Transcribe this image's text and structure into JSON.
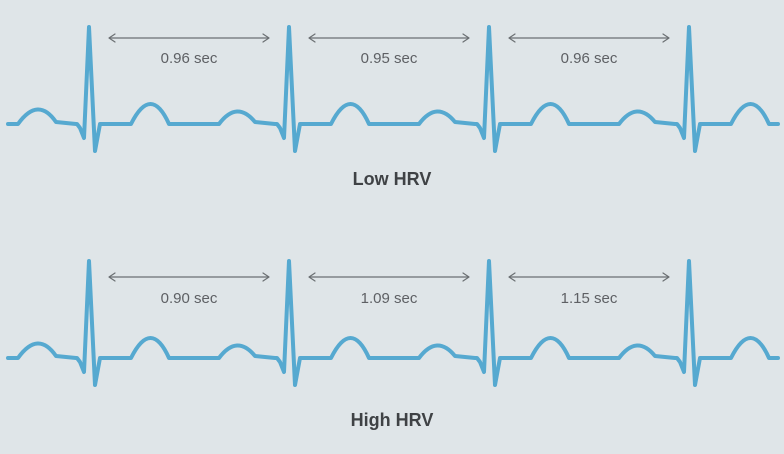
{
  "colors": {
    "background": "#dfe5e8",
    "trace": "#56a9d0",
    "arrow": "#6b6f73",
    "label_text": "#5e6064",
    "title_text": "#3f4245"
  },
  "panels": [
    {
      "title": "Low HRV",
      "intervals": [
        {
          "label": "0.96 sec",
          "seconds": 0.96
        },
        {
          "label": "0.95 sec",
          "seconds": 0.95
        },
        {
          "label": "0.96 sec",
          "seconds": 0.96
        }
      ]
    },
    {
      "title": "High HRV",
      "intervals": [
        {
          "label": "0.90 sec",
          "seconds": 0.9
        },
        {
          "label": "1.09 sec",
          "seconds": 1.09
        },
        {
          "label": "1.15 sec",
          "seconds": 1.15
        }
      ]
    }
  ]
}
